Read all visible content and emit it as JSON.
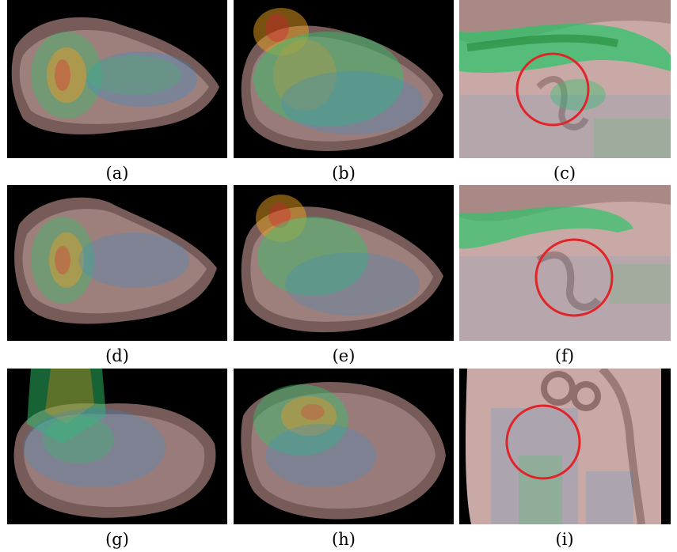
{
  "figure": {
    "panels": [
      {
        "label": "(a)",
        "kind": "heart-overview",
        "view": "side",
        "jet": "left-red"
      },
      {
        "label": "(b)",
        "kind": "heart-overview",
        "view": "side-top",
        "jet": "top-red"
      },
      {
        "label": "(c)",
        "kind": "wall-closeup",
        "highlight": "red-circle"
      },
      {
        "label": "(d)",
        "kind": "heart-overview",
        "view": "side",
        "jet": "left-red"
      },
      {
        "label": "(e)",
        "kind": "heart-overview",
        "view": "side-top",
        "jet": "top-red"
      },
      {
        "label": "(f)",
        "kind": "wall-closeup",
        "highlight": "red-circle"
      },
      {
        "label": "(g)",
        "kind": "heart-overview",
        "view": "oblique",
        "jet": "left-green"
      },
      {
        "label": "(h)",
        "kind": "heart-overview",
        "view": "oblique",
        "jet": "left-mixed"
      },
      {
        "label": "(i)",
        "kind": "valve-closeup",
        "highlight": "red-circle"
      }
    ],
    "colors": {
      "background": "#000000",
      "tissue": "#c9a9a6",
      "tissue_dark": "#7e615e",
      "highlight_circle": "#e0242a",
      "vector_low": "#2a8fd8",
      "vector_mid": "#2fc36a",
      "vector_high": "#e8a020"
    }
  }
}
